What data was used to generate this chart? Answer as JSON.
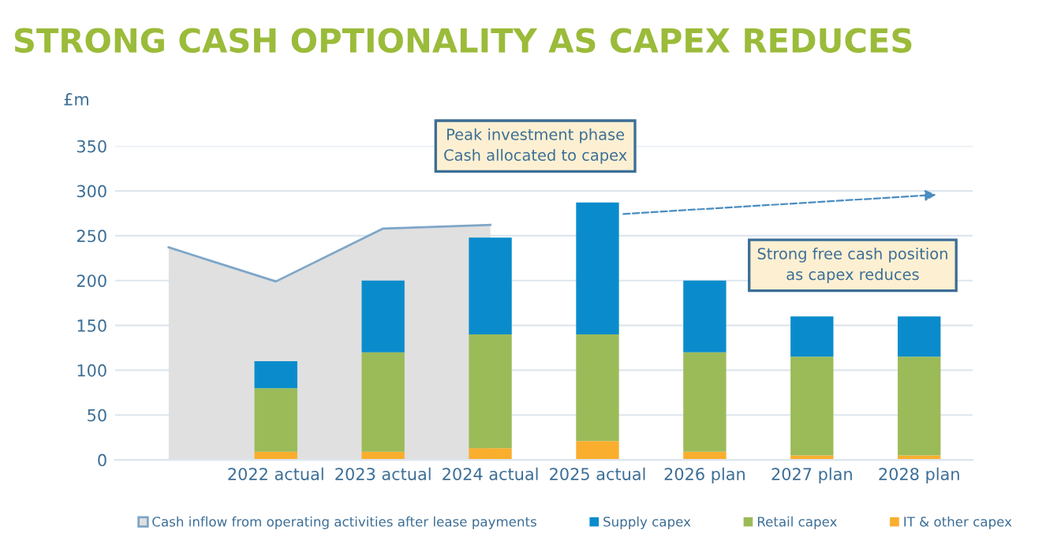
{
  "chart_data": [
    {
      "type": "area",
      "title": "STRONG CASH OPTIONALITY AS CAPEX REDUCES",
      "ylabel": "£m",
      "categories": [
        null,
        null,
        null,
        null,
        null,
        null,
        null,
        null
      ],
      "series": [
        {
          "name": "Cash inflow from operating activities after lease payments",
          "color": "#e0e0e0",
          "values": [
            237,
            199,
            258,
            262,
            null,
            null,
            null,
            null
          ]
        }
      ],
      "ylim": [
        0,
        350
      ],
      "yticks": [
        0,
        50,
        100,
        150,
        200,
        250,
        300,
        350
      ],
      "grid": "y",
      "tick_labels": "y",
      "legend": "bottom"
    },
    {
      "type": "bar",
      "stacked": true,
      "categories": [
        null,
        "2022 actual",
        "2023 actual",
        "2024 actual",
        "2025 actual",
        "2026 plan",
        "2027 plan",
        "2028 plan"
      ],
      "series": [
        {
          "name": "IT & other capex",
          "color": "#f9ae2e",
          "values": [
            null,
            9,
            9,
            13,
            21,
            9,
            5,
            5
          ]
        },
        {
          "name": "Retail capex",
          "color": "#9bbb59",
          "values": [
            null,
            71,
            111,
            127,
            119,
            111,
            110,
            110
          ]
        },
        {
          "name": "Supply capex",
          "color": "#0a8ccc",
          "values": [
            null,
            30,
            80,
            108,
            147,
            80,
            45,
            45
          ]
        }
      ],
      "ylim": [
        0,
        350
      ],
      "yticks": [
        0,
        50,
        100,
        150,
        200,
        250,
        300,
        350
      ],
      "tick_labels": "x",
      "legend": "bottom",
      "annotations": [
        "Peak investment phase\nCash allocated to capex",
        "Strong free cash position\nas capex reduces"
      ]
    }
  ]
}
